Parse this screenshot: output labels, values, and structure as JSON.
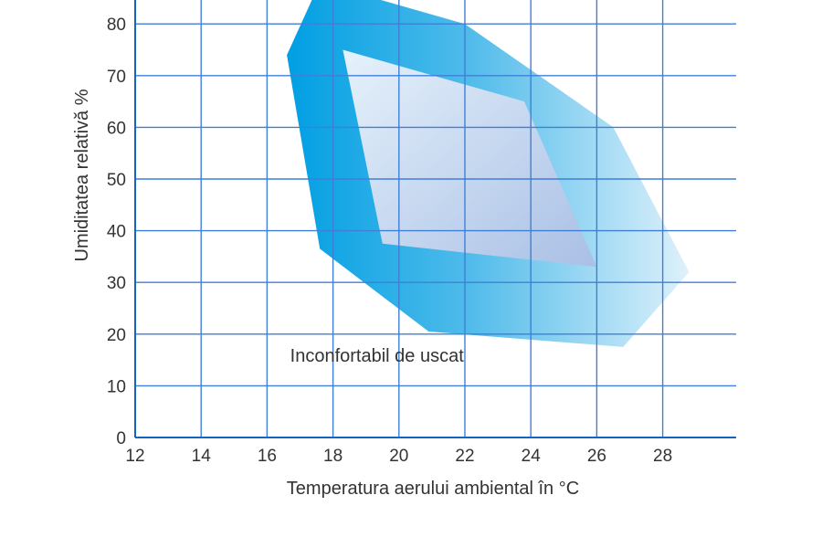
{
  "chart_data": {
    "type": "area",
    "xlabel": "Temperatura aerului ambiental în °C",
    "ylabel": "Umiditatea relativă  %",
    "xlim": [
      12,
      30.2
    ],
    "ylim": [
      0,
      85
    ],
    "x_ticks": [
      12,
      14,
      16,
      18,
      20,
      22,
      24,
      26,
      28
    ],
    "y_ticks": [
      0,
      10,
      20,
      30,
      40,
      50,
      60,
      70,
      80
    ],
    "grid": true,
    "annotations": [
      {
        "text": "Inconfortabil de uscat",
        "x": 16.7,
        "y": 15
      }
    ],
    "series": [
      {
        "colors": {
          "start": "#009fe3",
          "mid": "#4fbbea",
          "end": "#dff1fb"
        },
        "polygon": [
          {
            "x": 17.6,
            "y": 88
          },
          {
            "x": 22,
            "y": 80
          },
          {
            "x": 26.5,
            "y": 60
          },
          {
            "x": 28.8,
            "y": 32
          },
          {
            "x": 26.8,
            "y": 17.5
          },
          {
            "x": 20.9,
            "y": 20.5
          },
          {
            "x": 17.6,
            "y": 36.5
          },
          {
            "x": 16.6,
            "y": 74
          }
        ]
      },
      {
        "colors": {
          "start": "#e6f2fb",
          "end": "#a9bfe5"
        },
        "polygon": [
          {
            "x": 18.3,
            "y": 75
          },
          {
            "x": 23.8,
            "y": 65
          },
          {
            "x": 26,
            "y": 33
          },
          {
            "x": 19.5,
            "y": 37.5
          }
        ]
      }
    ],
    "axis_color": "#1565c0",
    "grid_color": "#3f7fd8"
  }
}
